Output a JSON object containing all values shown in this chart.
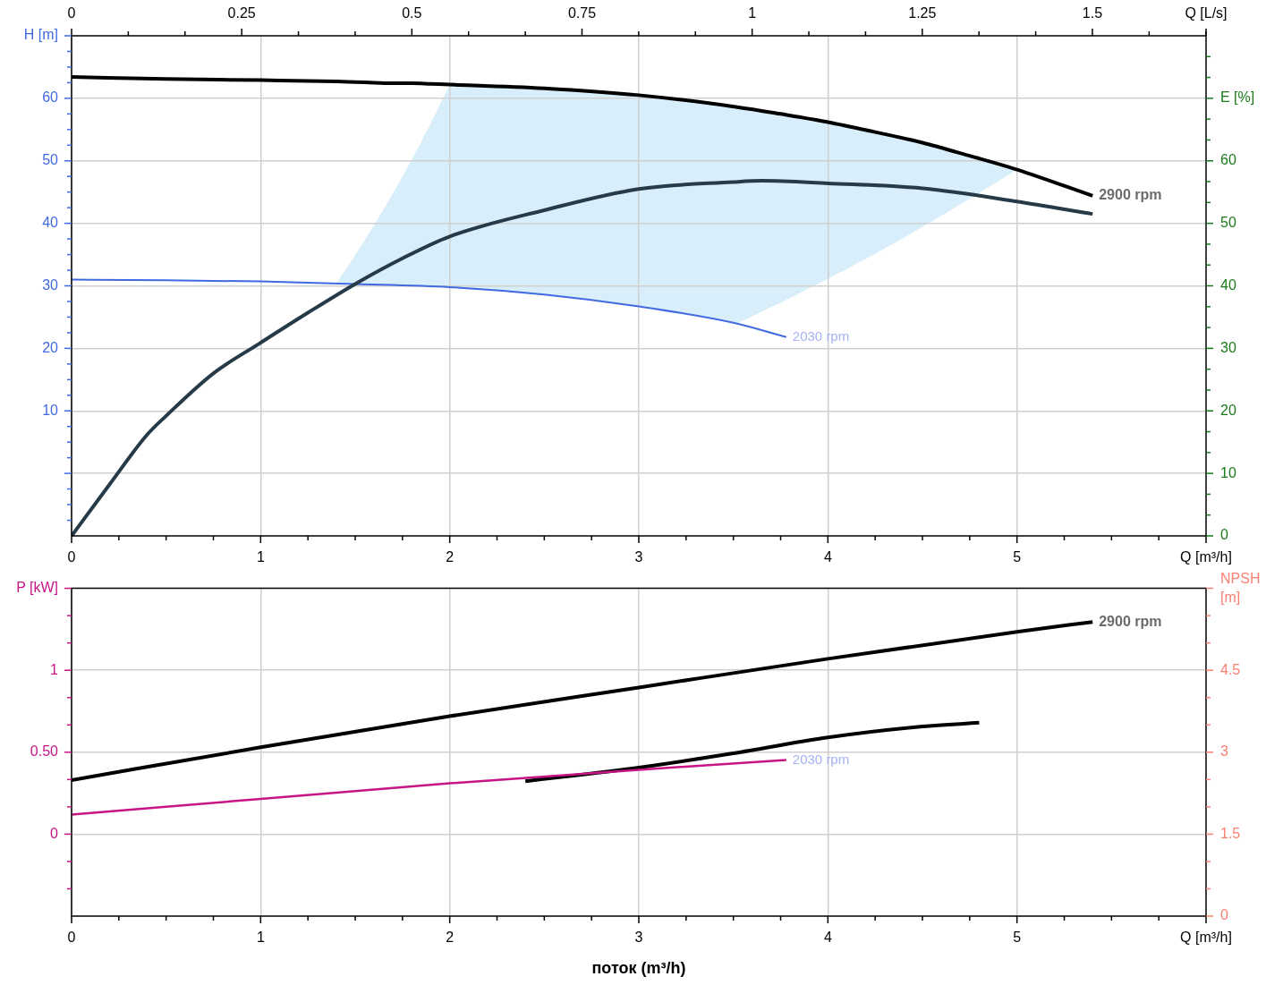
{
  "chart_data": [
    {
      "type": "line",
      "xlabel": "Q [m³/h]",
      "x2label": "Q [L/s]",
      "ylabel": "H [m]",
      "y2label": "E [%]",
      "xlim": [
        0,
        6
      ],
      "xticks": [
        0,
        1,
        2,
        3,
        4,
        5
      ],
      "x2lim": [
        0,
        1.667
      ],
      "x2ticks": [
        0,
        0.25,
        0.5,
        0.75,
        1,
        1.25,
        1.5
      ],
      "ylim": [
        -10,
        70
      ],
      "yticks": [
        {
          "value": 0,
          "label": null
        },
        10,
        20,
        30,
        40,
        50,
        60
      ],
      "y2lim": [
        0,
        80
      ],
      "y2ticks": [
        0,
        10,
        20,
        30,
        40,
        50,
        60
      ],
      "grid": true,
      "series": [
        {
          "name": "2900 rpm",
          "color": "#000000",
          "x": [
            0,
            0.5,
            1,
            1.4,
            1.5,
            1.6,
            1.7,
            1.8,
            1.9,
            2,
            2.5,
            3,
            3.52,
            3.75,
            4,
            4.25,
            4.5,
            4.75,
            5,
            5.4
          ],
          "values": [
            63.4,
            63.1,
            62.9,
            62.7,
            62.6,
            62.5,
            62.4,
            62.4,
            62.3,
            62.2,
            61.6,
            60.5,
            58.6,
            57.5,
            56.2,
            54.6,
            52.9,
            50.8,
            48.6,
            44.4
          ],
          "upper": [
            null,
            null,
            null,
            30.4,
            34.9,
            39.7,
            44.8,
            50.2,
            56.0,
            62.2,
            61.6,
            60.5,
            58.6,
            57.5,
            56.2,
            54.6,
            52.9,
            50.8,
            48.6,
            null
          ],
          "lower": [
            null,
            null,
            null,
            30.4,
            30.3,
            30.2,
            30.1,
            30.0,
            29.9,
            29.8,
            28.6,
            26.7,
            24.0,
            27.3,
            31.1,
            35.1,
            39.4,
            43.9,
            48.6,
            null
          ]
        },
        {
          "color": "#263a48",
          "axis": "y2",
          "x": [
            0,
            0.2,
            0.4,
            0.5,
            0.75,
            1,
            1.25,
            1.5,
            1.75,
            2,
            2.5,
            3,
            3.5,
            3.65,
            4,
            4.5,
            5,
            5.4
          ],
          "values": [
            0,
            8.2,
            16.2,
            19.2,
            26.0,
            30.9,
            35.7,
            40.3,
            44.4,
            47.9,
            52.1,
            55.5,
            56.6,
            56.8,
            56.4,
            55.6,
            53.5,
            51.5
          ]
        },
        {
          "name": "2030 rpm",
          "color": "#4169e1",
          "x": [
            0,
            0.5,
            1,
            1.5,
            2,
            2.5,
            3,
            3.5,
            3.78
          ],
          "values": [
            31.0,
            30.9,
            30.7,
            30.3,
            29.8,
            28.6,
            26.7,
            24.1,
            21.8
          ]
        }
      ]
    },
    {
      "type": "line",
      "xlabel": "Q [m³/h]",
      "ylabel": "P [kW]",
      "y2label": "NPSH [m]",
      "annotations": [
        "поток (m³/h)"
      ],
      "xlim": [
        0,
        6
      ],
      "xticks": [
        0,
        1,
        2,
        3,
        4,
        5
      ],
      "ylim": [
        -0.5,
        1.5
      ],
      "yticks": [
        0,
        {
          "value": 0.5,
          "label": "0.50"
        },
        1
      ],
      "y2lim": [
        0,
        6
      ],
      "y2ticks": [
        0,
        1.5,
        3,
        4.5
      ],
      "grid": true,
      "series": [
        {
          "name": "2900 rpm",
          "color": "#000000",
          "x": [
            0,
            1,
            2,
            3,
            4,
            5,
            5.4
          ],
          "values": [
            0.33,
            0.53,
            0.72,
            0.895,
            1.07,
            1.235,
            1.295
          ]
        },
        {
          "name": "2030 rpm",
          "color": "#c71585",
          "x": [
            0,
            1,
            2,
            3,
            3.78
          ],
          "values": [
            0.12,
            0.215,
            0.31,
            0.393,
            0.452
          ]
        },
        {
          "color": "#000000",
          "axis": "y2",
          "x": [
            2.4,
            3,
            3.5,
            4,
            4.5,
            4.8
          ],
          "values": [
            2.47,
            2.72,
            2.98,
            3.27,
            3.47,
            3.54
          ]
        }
      ]
    }
  ]
}
